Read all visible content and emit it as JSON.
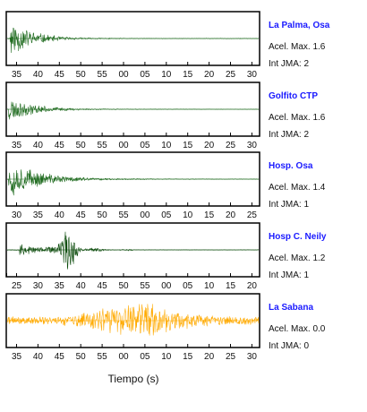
{
  "chart_data": {
    "type": "line",
    "xlabel": "Tiempo (s)",
    "panels": [
      {
        "station": "La Palma, Osa",
        "pga_text": "Acel. Max. 1.6",
        "jma_text": "Int JMA: 2",
        "color": "#1f6b1f",
        "tick_labels": [
          "35",
          "40",
          "45",
          "50",
          "55",
          "00",
          "05",
          "10",
          "15",
          "20",
          "25",
          "30"
        ],
        "waveform": {
          "onset": 0.01,
          "peak": 0.92,
          "decay": 0.085,
          "tail": 0.012,
          "seed": 11
        }
      },
      {
        "station": "Golfito CTP",
        "pga_text": "Acel. Max. 1.6",
        "jma_text": "Int JMA: 2",
        "color": "#1f6b1f",
        "tick_labels": [
          "35",
          "40",
          "45",
          "50",
          "55",
          "00",
          "05",
          "10",
          "15",
          "20",
          "25",
          "30"
        ],
        "waveform": {
          "onset": 0.005,
          "peak": 0.55,
          "decay": 0.1,
          "tail": 0.01,
          "seed": 23
        }
      },
      {
        "station": "Hosp. Osa",
        "pga_text": "Acel. Max. 1.4",
        "jma_text": "Int JMA: 1",
        "color": "#1f6b1f",
        "tick_labels": [
          "30",
          "35",
          "40",
          "45",
          "50",
          "55",
          "00",
          "05",
          "10",
          "15",
          "20",
          "25"
        ],
        "waveform": {
          "onset": 0.005,
          "peak": 0.85,
          "decay": 0.12,
          "tail": 0.012,
          "seed": 37
        }
      },
      {
        "station": "Hosp C. Neily",
        "pga_text": "Acel. Max. 1.2",
        "jma_text": "Int JMA: 1",
        "color": "#0a4a0a",
        "tick_labels": [
          "25",
          "30",
          "35",
          "40",
          "45",
          "50",
          "55",
          "00",
          "05",
          "10",
          "15",
          "20"
        ],
        "waveform": {
          "onset": 0.05,
          "peak": 0.3,
          "burst_at": 0.24,
          "burst_peak": 0.95,
          "decay": 0.08,
          "tail": 0.01,
          "seed": 53
        }
      },
      {
        "station": "La Sabana",
        "pga_text": "Acel. Max. 0.0",
        "jma_text": "Int JMA: 0",
        "color": "#ffaa00",
        "tick_labels": [
          "35",
          "40",
          "45",
          "50",
          "55",
          "00",
          "05",
          "10",
          "15",
          "20",
          "25",
          "30"
        ],
        "waveform": {
          "onset": 0.0,
          "noise": true,
          "base": 0.18,
          "hump_center": 0.52,
          "hump_width": 0.18,
          "hump_peak": 0.6,
          "seed": 71
        }
      }
    ]
  }
}
